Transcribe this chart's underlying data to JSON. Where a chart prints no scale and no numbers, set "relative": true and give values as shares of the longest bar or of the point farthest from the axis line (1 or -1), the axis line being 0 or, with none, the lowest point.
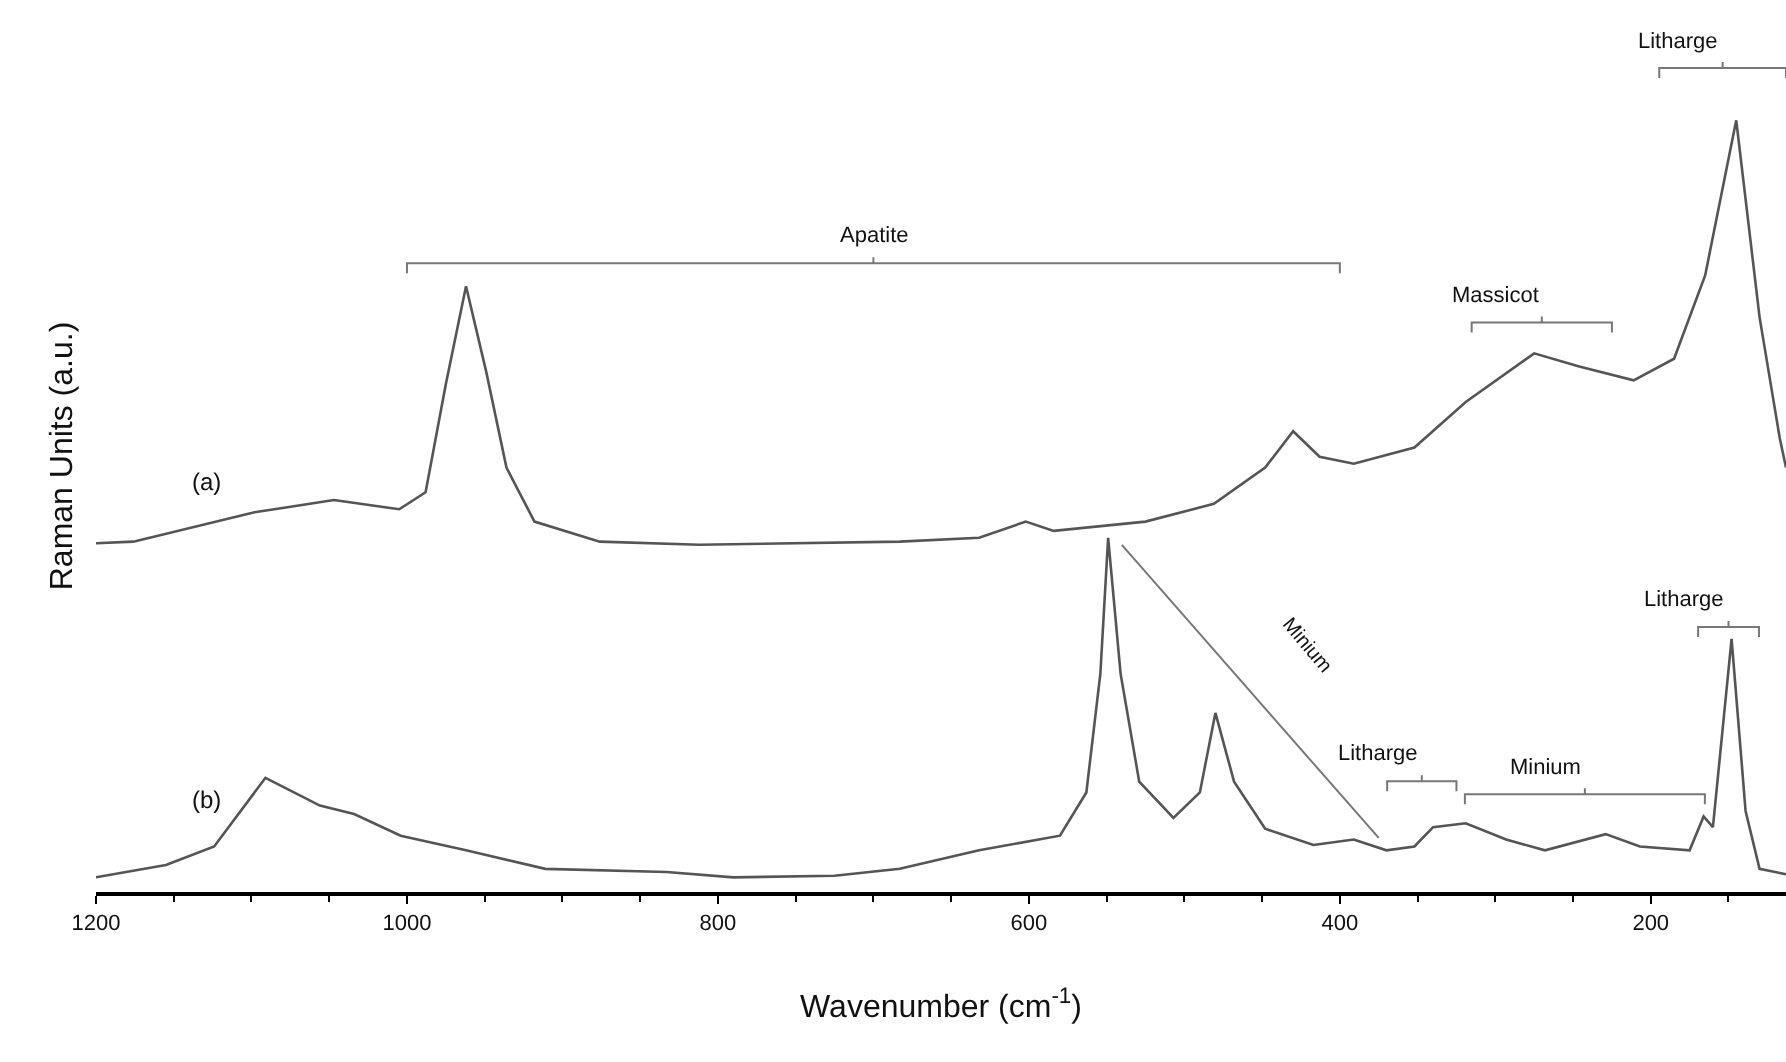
{
  "chart_data": {
    "type": "line",
    "relative": true,
    "xlabel": "Wavenumber (cm$^{-1}$)",
    "ylabel": "Raman Units (a.u.)",
    "xlim": [
      1200,
      113
    ],
    "xticks": [
      1200,
      1000,
      800,
      600,
      400,
      200
    ],
    "grid": false,
    "marker": "none",
    "line_style": "solid",
    "series": [
      {
        "color": "#555555",
        "x": [
          1200,
          1176,
          1098,
          1047,
          1005,
          988,
          975,
          962,
          949,
          936,
          918,
          876,
          812,
          683,
          632,
          602,
          584,
          525,
          481,
          448,
          430,
          413,
          391,
          352,
          319,
          275,
          246,
          211,
          185,
          165,
          145,
          130,
          117,
          113
        ],
        "values": [
          0.452,
          0.454,
          0.492,
          0.508,
          0.496,
          0.518,
          0.658,
          0.785,
          0.674,
          0.55,
          0.48,
          0.454,
          0.45,
          0.454,
          0.459,
          0.48,
          0.468,
          0.48,
          0.503,
          0.55,
          0.597,
          0.564,
          0.555,
          0.576,
          0.635,
          0.698,
          0.681,
          0.663,
          0.691,
          0.799,
          1,
          0.745,
          0.588,
          0.55
        ]
      },
      {
        "color": "#555555",
        "x": [
          1200,
          1155,
          1124,
          1091,
          1056,
          1034,
          1004,
          962,
          911,
          833,
          790,
          725,
          683,
          632,
          580,
          563,
          554,
          549,
          541,
          529,
          507,
          490,
          480,
          468,
          448,
          417,
          391,
          370,
          352,
          340,
          319,
          293,
          268,
          229,
          207,
          175,
          166,
          160,
          148,
          139,
          130,
          113
        ],
        "values": [
          0.019,
          0.035,
          0.059,
          0.148,
          0.112,
          0.101,
          0.073,
          0.054,
          0.03,
          0.026,
          0.019,
          0.021,
          0.03,
          0.054,
          0.073,
          0.129,
          0.283,
          0.459,
          0.283,
          0.143,
          0.096,
          0.129,
          0.232,
          0.143,
          0.082,
          0.061,
          0.068,
          0.054,
          0.059,
          0.084,
          0.089,
          0.068,
          0.054,
          0.075,
          0.059,
          0.054,
          0.098,
          0.084,
          0.328,
          0.105,
          0.03,
          0.023
        ]
      }
    ],
    "annotations": [
      "Apatite",
      "Massicot",
      "Litharge",
      "Minium",
      "Litharge",
      "Minium",
      "Litharge",
      "(a)",
      "(b)"
    ]
  }
}
